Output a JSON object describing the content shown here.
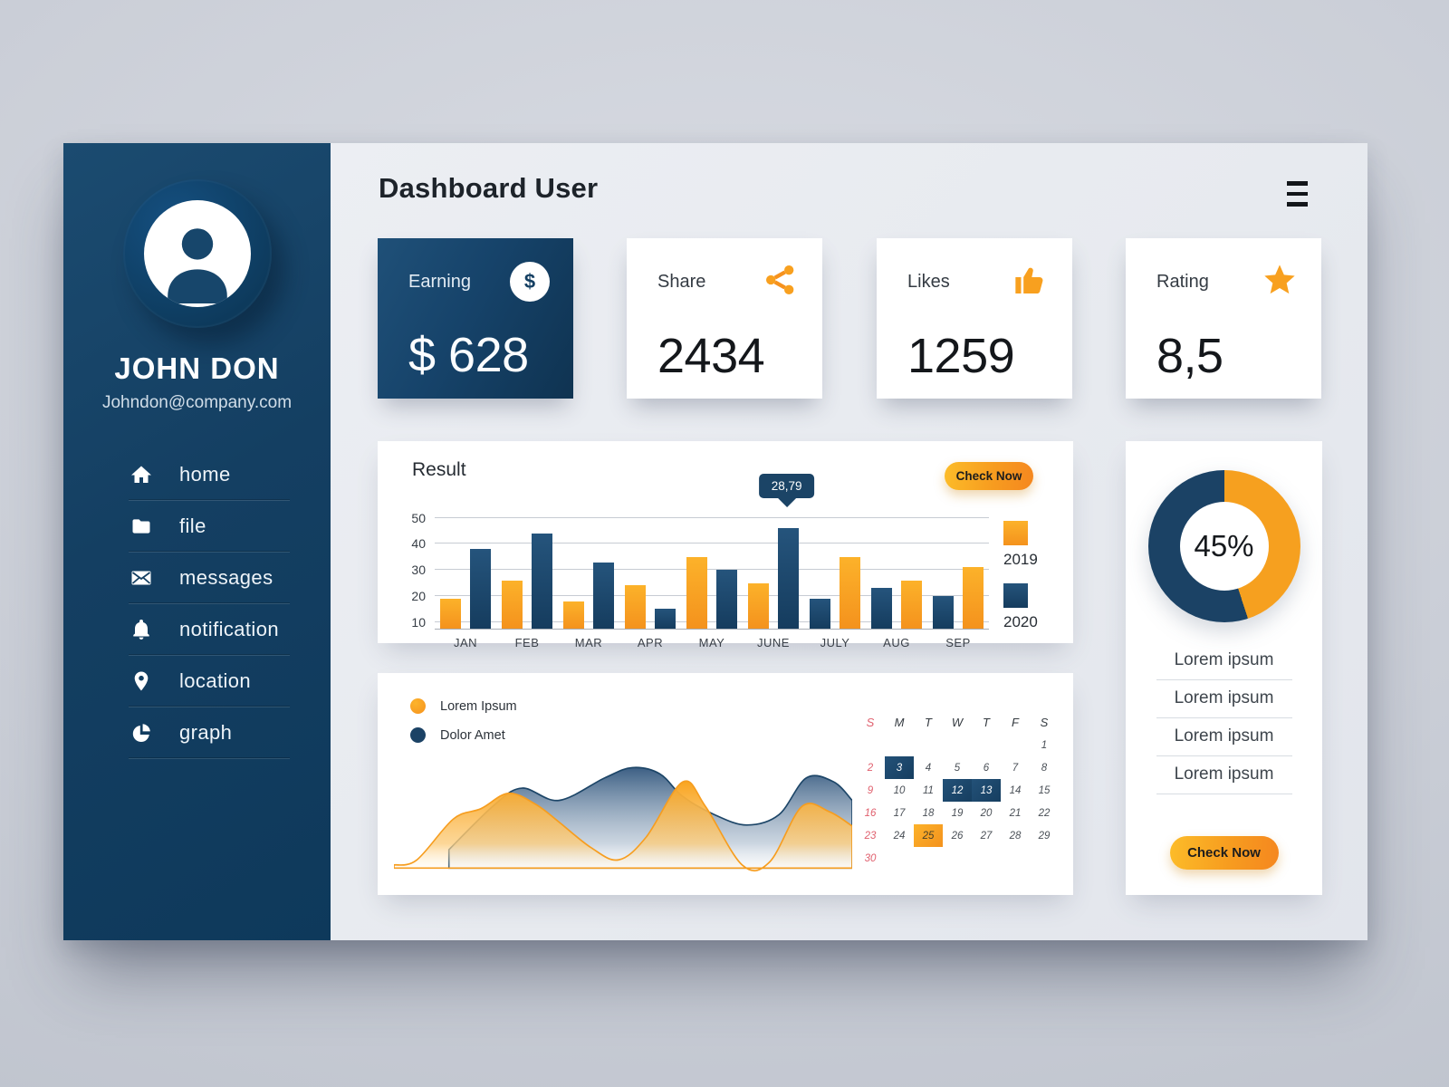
{
  "app": {
    "title": "Dashboard User"
  },
  "sidebar": {
    "name": "JOHN DON",
    "email": "Johndon@company.com",
    "items": [
      {
        "label": "home",
        "icon": "home-icon"
      },
      {
        "label": "file",
        "icon": "folder-icon"
      },
      {
        "label": "messages",
        "icon": "envelope-icon"
      },
      {
        "label": "notification",
        "icon": "bell-icon"
      },
      {
        "label": "location",
        "icon": "location-pin-icon"
      },
      {
        "label": "graph",
        "icon": "pie-chart-icon"
      }
    ]
  },
  "stats": [
    {
      "label": "Earning",
      "value": "$ 628",
      "icon": "dollar-icon",
      "style": "dark"
    },
    {
      "label": "Share",
      "value": "2434",
      "icon": "share-icon",
      "style": "light"
    },
    {
      "label": "Likes",
      "value": "1259",
      "icon": "thumbs-up-icon",
      "style": "light"
    },
    {
      "label": "Rating",
      "value": "8,5",
      "icon": "star-icon",
      "style": "light"
    }
  ],
  "result_card": {
    "title": "Result",
    "button_label": "Check Now",
    "tooltip": "28,79"
  },
  "right_card": {
    "donut_label": "45%",
    "items": [
      "Lorem ipsum",
      "Lorem ipsum",
      "Lorem ipsum",
      "Lorem ipsum"
    ],
    "button_label": "Check Now"
  },
  "colors": {
    "orange": "#f69c1e",
    "orange_light": "#fcb42c",
    "dark_blue": "#1b4265",
    "calendar_red": "#e0606e"
  },
  "chart_data": [
    {
      "type": "bar",
      "title": "Result",
      "categories": [
        "JAN",
        "FEB",
        "MAR",
        "APR",
        "MAY",
        "JUNE",
        "JULY",
        "AUG",
        "SEP"
      ],
      "series": [
        {
          "name": "2019",
          "color": "#f8a01f",
          "values": [
            19,
            26,
            18,
            24,
            35,
            25,
            35,
            26,
            31
          ]
        },
        {
          "name": "2020",
          "color": "#1b4265",
          "values": [
            38,
            44,
            33,
            15,
            30,
            46,
            19,
            23,
            20
          ]
        }
      ],
      "bar_order": [
        [
          "2019",
          "2020"
        ],
        [
          "2019",
          "2020"
        ],
        [
          "2019",
          "2020"
        ],
        [
          "2019",
          "2020"
        ],
        [
          "2019",
          "2020"
        ],
        [
          "2019",
          "2020"
        ],
        [
          "2020",
          "2019"
        ],
        [
          "2020",
          "2019"
        ],
        [
          "2020",
          "2019"
        ]
      ],
      "yticks": [
        10,
        20,
        30,
        40,
        50
      ],
      "ylim": [
        7.5,
        54
      ],
      "grid": true,
      "legend_position": "right",
      "tooltip": {
        "category": "JUNE",
        "series": "2020",
        "label": "28,79"
      }
    },
    {
      "type": "area",
      "series": [
        {
          "name": "Dolor Amet",
          "color": "#1d4668",
          "points": [
            [
              12,
              18
            ],
            [
              22,
              62
            ],
            [
              28,
              78
            ],
            [
              36,
              66
            ],
            [
              46,
              88
            ],
            [
              52,
              98
            ],
            [
              58,
              92
            ],
            [
              63,
              70
            ],
            [
              70,
              52
            ],
            [
              77,
              42
            ],
            [
              84,
              52
            ],
            [
              90,
              88
            ],
            [
              96,
              84
            ],
            [
              100,
              66
            ]
          ]
        },
        {
          "name": "Lorem Ipsum",
          "color": "#f69d1f",
          "points": [
            [
              0,
              3
            ],
            [
              5,
              8
            ],
            [
              13,
              48
            ],
            [
              19,
              58
            ],
            [
              25,
              73
            ],
            [
              31,
              62
            ],
            [
              36,
              45
            ],
            [
              43,
              20
            ],
            [
              49,
              8
            ],
            [
              55,
              30
            ],
            [
              63,
              84
            ],
            [
              68,
              60
            ],
            [
              76,
              3
            ],
            [
              82,
              6
            ],
            [
              89,
              60
            ],
            [
              95,
              55
            ],
            [
              100,
              41
            ]
          ]
        }
      ],
      "legend_position": "top-left"
    },
    {
      "type": "donut",
      "label": "45%",
      "segments": [
        {
          "name": "filled",
          "value": 45,
          "color": "#f6a01f"
        },
        {
          "name": "remainder",
          "value": 55,
          "color": "#1b4265"
        }
      ]
    }
  ],
  "calendar": {
    "day_headers": [
      "S",
      "M",
      "T",
      "W",
      "T",
      "F",
      "S"
    ],
    "weeks": [
      [
        "",
        "",
        "",
        "",
        "",
        "",
        "1"
      ],
      [
        "2",
        "3",
        "4",
        "5",
        "6",
        "7",
        "8"
      ],
      [
        "9",
        "10",
        "11",
        "12",
        "13",
        "14",
        "15"
      ],
      [
        "16",
        "17",
        "18",
        "19",
        "20",
        "21",
        "22"
      ],
      [
        "23",
        "24",
        "25",
        "26",
        "27",
        "28",
        "29"
      ],
      [
        "30",
        "",
        "",
        "",
        "",
        "",
        ""
      ]
    ],
    "highlight_dark": [
      "3",
      "12",
      "13"
    ],
    "highlight_orange": [
      "25"
    ]
  }
}
